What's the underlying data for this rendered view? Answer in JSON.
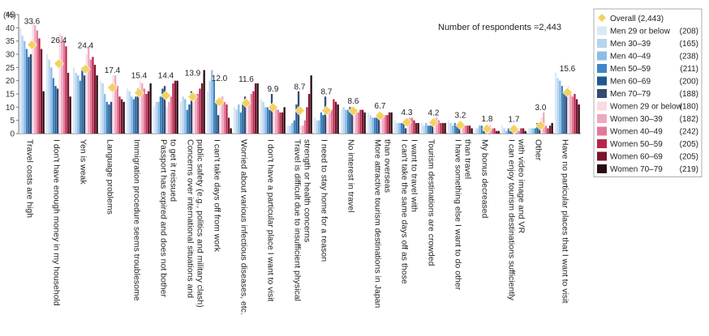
{
  "chart_data": {
    "type": "bar",
    "y_unit": "(%)",
    "ylim": [
      0,
      45
    ],
    "yticks": [
      0,
      5,
      10,
      15,
      20,
      25,
      30,
      35,
      40,
      45
    ],
    "grid": false,
    "legend_placement": "right",
    "respondents_note": "Number of respondents =2,443",
    "overall": {
      "name": "Overall",
      "n": "(2,443)",
      "marker": "diamond",
      "color": "#f5d160",
      "values": [
        33.6,
        26.4,
        24.4,
        17.4,
        15.4,
        14.4,
        13.9,
        12.0,
        11.6,
        9.9,
        8.7,
        8.7,
        8.6,
        6.7,
        4.3,
        4.2,
        3.2,
        1.8,
        1.7,
        3.0,
        15.6
      ]
    },
    "categories": [
      [
        "Travel costs are high"
      ],
      [
        "I don't have enough money in my household"
      ],
      [
        "Yen is weak"
      ],
      [
        "Language problems"
      ],
      [
        "Immigration procedure seems troublesome"
      ],
      [
        "Passport has expired and does not bother",
        "to get it reissued"
      ],
      [
        "Concerns over international situations and",
        "public safety (e.g., politics and military clash)"
      ],
      [
        "I can't take days off from work"
      ],
      [
        "Worried about various infectious diseases, etc."
      ],
      [
        "I don't have a particular place I want to visit"
      ],
      [
        "Travel is difficult due to insufficient physical",
        "strength or health concerns"
      ],
      [
        "I need to stay home for a reason"
      ],
      [
        "No interest in travel"
      ],
      [
        "More attractive tourism destinations in Japan",
        "than overseas"
      ],
      [
        "I can't take the same days off as those",
        "I want to travel with"
      ],
      [
        "Tourism destinations are crowded"
      ],
      [
        "I have something else I want to do other",
        "than travel"
      ],
      [
        "My bonus decreased"
      ],
      [
        "I can enjoy tourism destinations sufficiently",
        "with video image and VR"
      ],
      [
        "Other"
      ],
      [
        "Have no particular places that I want to visit"
      ]
    ],
    "series": [
      {
        "name": "Men 29 or below",
        "n": "(208)",
        "color": "#d9e9f7",
        "values": [
          40,
          30,
          25,
          20,
          17,
          10,
          12,
          16,
          10,
          13,
          3,
          6,
          9,
          8,
          5,
          4,
          5,
          2,
          3,
          2,
          23
        ]
      },
      {
        "name": "Men 30–39",
        "n": "(165)",
        "color": "#b7d4ee",
        "values": [
          37,
          28,
          23,
          19,
          16,
          12,
          14,
          20,
          9,
          12,
          3,
          5,
          10,
          7,
          4,
          3,
          4,
          2,
          2,
          2,
          21
        ]
      },
      {
        "name": "Men 40–49",
        "n": "(238)",
        "color": "#8dbde6",
        "values": [
          35,
          25,
          22,
          15,
          14,
          12,
          13,
          24,
          11,
          10,
          4,
          5,
          9,
          6,
          4,
          4,
          3,
          3,
          1,
          2,
          20
        ]
      },
      {
        "name": "Men 50–59",
        "n": "(211)",
        "color": "#3e86c6",
        "values": [
          32,
          21,
          20,
          12,
          13,
          14,
          9,
          20,
          8,
          10,
          5,
          8,
          9,
          6,
          4,
          3,
          4,
          3,
          2,
          2,
          18
        ]
      },
      {
        "name": "Men 60–69",
        "n": "(200)",
        "color": "#1e5a8f",
        "values": [
          29,
          18,
          25,
          11,
          14,
          17,
          11,
          12,
          11,
          9,
          11,
          7,
          10,
          6,
          4,
          3,
          3,
          1,
          1,
          4,
          16
        ]
      },
      {
        "name": "Men 70–79",
        "n": "(188)",
        "color": "#354a73",
        "values": [
          30,
          17,
          22,
          12,
          17,
          18,
          16,
          7,
          14,
          15,
          16,
          14,
          10,
          8,
          2,
          3,
          2,
          0,
          1,
          4,
          16
        ]
      },
      {
        "name": "Women 29 or below",
        "n": "(180)",
        "color": "#f8dbe4",
        "values": [
          42,
          38,
          30,
          22,
          20,
          10,
          12,
          10,
          11,
          10,
          3,
          6,
          9,
          7,
          6,
          6,
          4,
          2,
          2,
          6,
          18
        ]
      },
      {
        "name": "Women 30–39",
        "n": "(182)",
        "color": "#f0a8bf",
        "values": [
          41,
          37,
          33,
          22,
          19,
          12,
          15,
          14,
          12,
          10,
          3,
          8,
          9,
          6,
          6,
          6,
          3,
          3,
          2,
          8,
          15
        ]
      },
      {
        "name": "Women 40–49",
        "n": "(242)",
        "color": "#e27898",
        "values": [
          39,
          35,
          28,
          18,
          17,
          14,
          15,
          12,
          15,
          9,
          5,
          9,
          8,
          7,
          6,
          5,
          3,
          2,
          1,
          3,
          14
        ]
      },
      {
        "name": "Women 50–59",
        "n": "(205)",
        "color": "#b8254a",
        "values": [
          36,
          33,
          29,
          14,
          15,
          19,
          17,
          11,
          16,
          8,
          10,
          13,
          9,
          7,
          5,
          4,
          3,
          2,
          2,
          2,
          15
        ]
      },
      {
        "name": "Women 60–69",
        "n": "(205)",
        "color": "#7a1530",
        "values": [
          32,
          23,
          26,
          13,
          16,
          20,
          19,
          6,
          19,
          8,
          15,
          12,
          9,
          8,
          4,
          4,
          3,
          1,
          2,
          3,
          13
        ]
      },
      {
        "name": "Women 70–79",
        "n": "(219)",
        "color": "#2a0c12",
        "values": [
          16,
          14,
          22,
          12,
          19,
          20,
          24,
          2,
          19,
          10,
          22,
          11,
          8,
          8,
          4,
          4,
          2,
          1,
          1,
          4,
          11
        ]
      }
    ]
  }
}
